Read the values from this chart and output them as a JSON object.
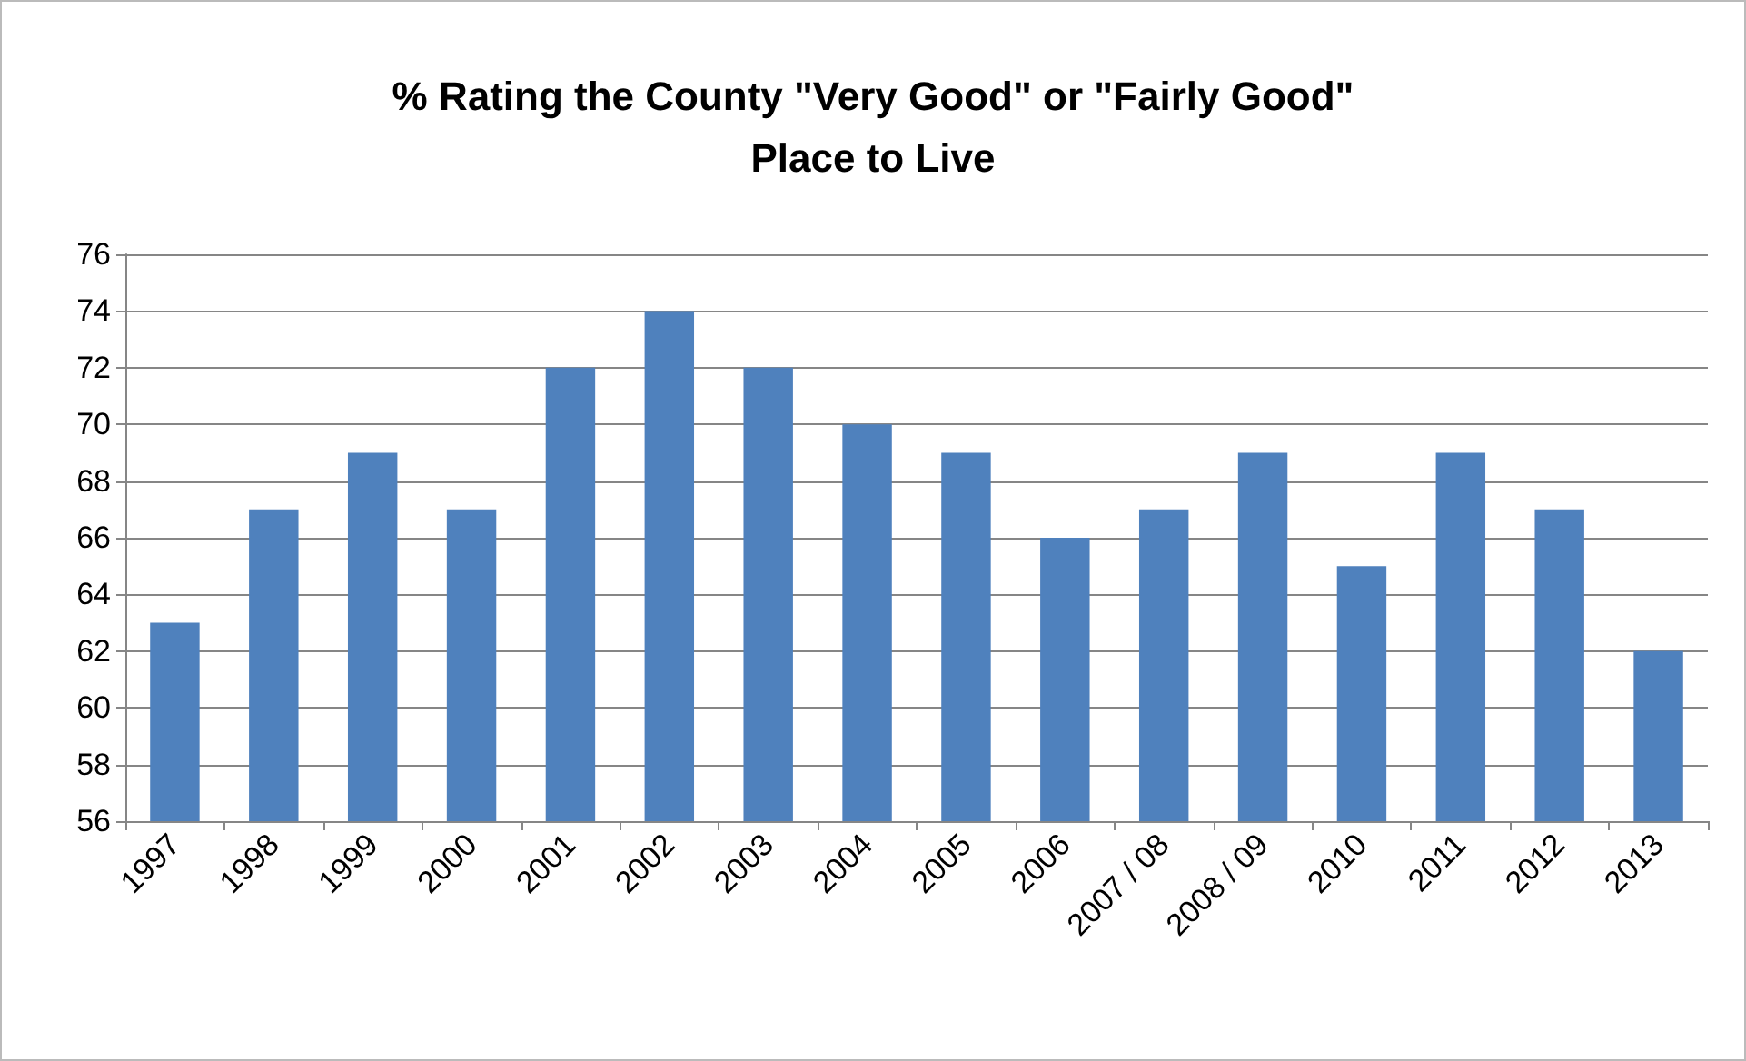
{
  "chart_data": {
    "type": "bar",
    "title": "% Rating the County \"Very Good\" or \"Fairly Good\"\nPlace to Live",
    "categories": [
      "1997",
      "1998",
      "1999",
      "2000",
      "2001",
      "2002",
      "2003",
      "2004",
      "2005",
      "2006",
      "2007 / 08",
      "2008 / 09",
      "2010",
      "2011",
      "2012",
      "2013"
    ],
    "values": [
      63,
      67,
      69,
      67,
      72,
      74,
      72,
      70,
      69,
      66,
      67,
      69,
      65,
      69,
      67,
      62
    ],
    "color": "#4f81bd",
    "ylim": [
      56,
      76
    ],
    "yticks": [
      56,
      58,
      60,
      62,
      64,
      66,
      68,
      70,
      72,
      74,
      76
    ],
    "grid": "y"
  }
}
